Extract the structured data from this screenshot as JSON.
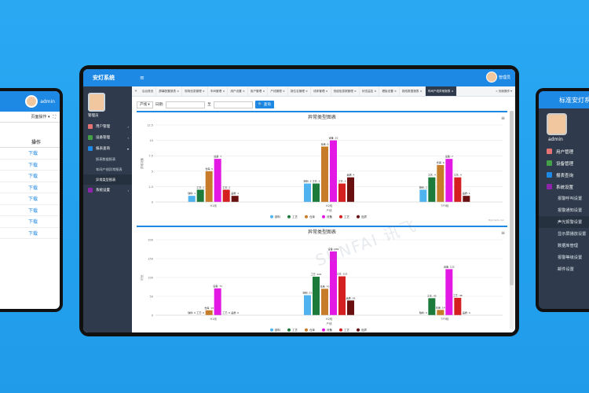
{
  "left_device": {
    "user": "admin",
    "toolbar": [
      "页面操作 ▾",
      "⛶"
    ],
    "column_header": "操作",
    "rows": [
      "下载",
      "下载",
      "下载",
      "下载",
      "下载",
      "下载",
      "下载",
      "下载"
    ]
  },
  "right_device": {
    "title": "标准安灯系统",
    "user": "admin",
    "menu": [
      {
        "label": "用户管理",
        "color": "#e57373"
      },
      {
        "label": "设备管理",
        "color": "#43a047"
      },
      {
        "label": "报表查询",
        "color": "#1e88e5"
      },
      {
        "label": "系统设置",
        "color": "#8e24aa"
      }
    ],
    "sub_items": [
      "报警呼叫设置",
      "报警通知设置",
      "声光报警设置",
      "显示屏播放设置",
      "数据库管理",
      "报警等级设置",
      "邮件设置"
    ],
    "active_sub": 2
  },
  "main": {
    "app_title": "安灯系统",
    "menu_toggle": "≡",
    "user_label": "管理员",
    "sidebar": {
      "user": "管理员",
      "menu": [
        {
          "label": "用户管理",
          "color": "#e57373"
        },
        {
          "label": "设备管理",
          "color": "#43a047"
        },
        {
          "label": "报表查询",
          "color": "#1e88e5"
        }
      ],
      "sub_items": [
        "报表数据报表",
        "车间产线异常报表",
        "异常类型图表"
      ],
      "active_sub": 2,
      "extra": {
        "label": "系统设置",
        "color": "#8e24aa"
      }
    },
    "tabs": [
      "«",
      "后台首页",
      "屏幕配置报表 ×",
      "现场信息管理 ×",
      "车间管理 ×",
      "用户设置 ×",
      "用户管理 ×",
      "产线管理 ×",
      "报位名管理 ×",
      "线体管理 ×",
      "班组信息报管理 ×",
      "状态监控 ×",
      "看板设置 ×",
      "报线数据报表 ×",
      "车间产线异常报表 ×"
    ],
    "active_tab": 14,
    "tabs_right": "» 页面操作 ▾",
    "filter": {
      "select": "产线 ▾",
      "date_label": "日期:",
      "search_btn": "🔍 查询"
    },
    "watermark": "SUNFAI 讯飞"
  },
  "chart_data": [
    {
      "type": "bar",
      "title": "异常类型图表",
      "ylabel": "异常次数",
      "xlabel": "产线",
      "categories": [
        "H1线",
        "H2线",
        "TP3线"
      ],
      "ylim": [
        0,
        12.5
      ],
      "yticks": [
        0,
        2.5,
        5,
        7.5,
        10,
        12.5
      ],
      "series": [
        {
          "name": "缺料",
          "color": "#4fb3f0",
          "values": [
            1,
            3,
            2
          ]
        },
        {
          "name": "工艺",
          "color": "#1c7a3a",
          "values": [
            2,
            3,
            4
          ]
        },
        {
          "name": "仓库",
          "color": "#c77c2a",
          "values": [
            5,
            9,
            6
          ]
        },
        {
          "name": "设备",
          "color": "#e418e4",
          "values": [
            7,
            10,
            7
          ]
        },
        {
          "name": "工艺",
          "color": "#d42020",
          "values": [
            2,
            3,
            4
          ]
        },
        {
          "name": "品质",
          "color": "#6a1010",
          "values": [
            1,
            4,
            1
          ]
        }
      ],
      "bar_labels": [
        [
          "缺料: 1",
          "工艺: 2",
          "仓库: 5",
          "设备: 7",
          "工艺: 2",
          "品质: 1"
        ],
        [
          "缺料: 3",
          "工艺: 3",
          "仓库: 9",
          "设备: 10",
          "工艺: 3",
          "品质: 4"
        ],
        [
          "缺料: 2",
          "工艺: 4",
          "仓库: 6",
          "设备: 7",
          "工艺: 4",
          "品质: 1"
        ]
      ],
      "credit": "Highcharts.com",
      "legend": "bottom"
    },
    {
      "type": "bar",
      "title": "异常类型图表",
      "ylabel": "时长",
      "xlabel": "产线",
      "categories": [
        "H1线",
        "H2线",
        "TP3线"
      ],
      "ylim": [
        0,
        200
      ],
      "yticks": [
        0,
        50,
        100,
        150,
        200
      ],
      "series": [
        {
          "name": "缺料",
          "color": "#4fb3f0",
          "values": [
            0,
            53,
            0
          ]
        },
        {
          "name": "工艺",
          "color": "#1c7a3a",
          "values": [
            0,
            102,
            45
          ]
        },
        {
          "name": "仓库",
          "color": "#c77c2a",
          "values": [
            13,
            70,
            14
          ]
        },
        {
          "name": "设备",
          "color": "#e418e4",
          "values": [
            71,
            169,
            122
          ]
        },
        {
          "name": "工艺",
          "color": "#d42020",
          "values": [
            0,
            103,
            46
          ]
        },
        {
          "name": "品质",
          "color": "#6a1010",
          "values": [
            0,
            39,
            0
          ]
        }
      ],
      "bar_labels": [
        [
          "缺料: 0",
          "工艺: 0",
          "仓库: 13",
          "设备: 71",
          "工艺: 0",
          "品质: 0"
        ],
        [
          "缺料: 53",
          "工艺: 102",
          "仓库: 70",
          "设备: 169",
          "工艺: 103",
          "品质: 39"
        ],
        [
          "缺料: 0",
          "工艺: 45",
          "仓库: 14",
          "设备: 122",
          "工艺: 46",
          "品质: 0"
        ]
      ],
      "legend": "bottom"
    }
  ]
}
